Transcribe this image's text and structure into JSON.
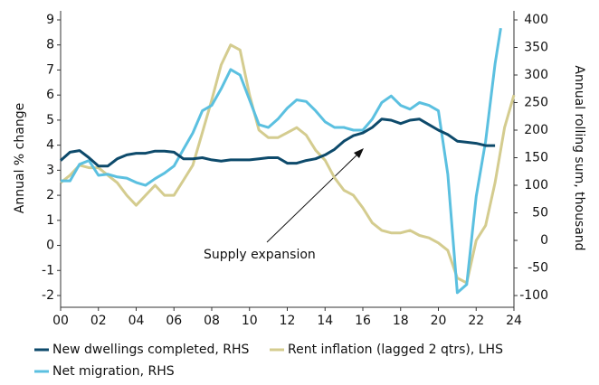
{
  "chart_data": {
    "type": "line",
    "ylabel": "Annual % change",
    "y2label": "Annual rolling sum, thousand",
    "annotation": "Supply expansion",
    "xlim": [
      2000,
      2024
    ],
    "xticks": [
      {
        "value": 2000,
        "label": "00"
      },
      {
        "value": 2002,
        "label": "02"
      },
      {
        "value": 2004,
        "label": "04"
      },
      {
        "value": 2006,
        "label": "06"
      },
      {
        "value": 2008,
        "label": "08"
      },
      {
        "value": 2010,
        "label": "10"
      },
      {
        "value": 2012,
        "label": "12"
      },
      {
        "value": 2014,
        "label": "14"
      },
      {
        "value": 2016,
        "label": "16"
      },
      {
        "value": 2018,
        "label": "18"
      },
      {
        "value": 2020,
        "label": "20"
      },
      {
        "value": 2022,
        "label": "22"
      },
      {
        "value": 2024,
        "label": "24"
      }
    ],
    "ylim": [
      -2,
      9
    ],
    "yticks": [
      -2,
      -1,
      0,
      1,
      2,
      3,
      4,
      5,
      6,
      7,
      8,
      9
    ],
    "y2lim": [
      -100,
      400
    ],
    "y2ticks": [
      -100,
      -50,
      0,
      50,
      100,
      150,
      200,
      250,
      300,
      350,
      400
    ],
    "series": [
      {
        "name": "New dwellings completed, RHS",
        "color": "#0d4a6b",
        "axis": "y2",
        "x": [
          2000,
          2000.5,
          2001,
          2001.5,
          2002,
          2002.5,
          2003,
          2003.5,
          2004,
          2004.5,
          2005,
          2005.5,
          2006,
          2006.5,
          2007,
          2007.5,
          2008,
          2008.5,
          2009,
          2009.5,
          2010,
          2010.5,
          2011,
          2011.5,
          2012,
          2012.5,
          2013,
          2013.5,
          2014,
          2014.5,
          2015,
          2015.5,
          2016,
          2016.5,
          2017,
          2017.5,
          2018,
          2018.5,
          2019,
          2019.5,
          2020,
          2020.5,
          2021,
          2021.5,
          2022,
          2022.5,
          2023
        ],
        "values": [
          145,
          160,
          163,
          150,
          135,
          135,
          148,
          155,
          158,
          158,
          162,
          162,
          160,
          148,
          148,
          150,
          146,
          144,
          146,
          146,
          146,
          148,
          150,
          150,
          140,
          140,
          145,
          148,
          155,
          165,
          180,
          190,
          195,
          205,
          220,
          218,
          212,
          218,
          220,
          210,
          200,
          192,
          180,
          178,
          176,
          172,
          172
        ]
      },
      {
        "name": "Rent inflation (lagged 2 qtrs), LHS",
        "color": "#d4cc8f",
        "axis": "y",
        "x": [
          2000,
          2000.5,
          2001,
          2001.5,
          2002,
          2002.5,
          2003,
          2003.5,
          2004,
          2004.5,
          2005,
          2005.5,
          2006,
          2006.5,
          2007,
          2007.5,
          2008,
          2008.5,
          2009,
          2009.5,
          2010,
          2010.5,
          2011,
          2011.5,
          2012,
          2012.5,
          2013,
          2013.5,
          2014,
          2014.5,
          2015,
          2015.5,
          2016,
          2016.5,
          2017,
          2017.5,
          2018,
          2018.5,
          2019,
          2019.5,
          2020,
          2020.5,
          2021,
          2021.5,
          2022,
          2022.5,
          2023,
          2023.5,
          2024
        ],
        "values": [
          2.5,
          2.8,
          3.2,
          3.1,
          3.1,
          2.8,
          2.5,
          2.0,
          1.6,
          2.0,
          2.4,
          2.0,
          2.0,
          2.6,
          3.2,
          4.5,
          5.8,
          7.2,
          8.0,
          7.8,
          6.0,
          4.6,
          4.3,
          4.3,
          4.5,
          4.7,
          4.4,
          3.8,
          3.4,
          2.7,
          2.2,
          2.0,
          1.5,
          0.9,
          0.6,
          0.5,
          0.5,
          0.6,
          0.4,
          0.3,
          0.1,
          -0.2,
          -1.3,
          -1.5,
          0.2,
          0.8,
          2.5,
          4.7,
          6.0
        ]
      },
      {
        "name": "Net migration, RHS",
        "color": "#5bc0e0",
        "axis": "y2",
        "x": [
          2000,
          2000.5,
          2001,
          2001.5,
          2002,
          2002.5,
          2003,
          2003.5,
          2004,
          2004.5,
          2005,
          2005.5,
          2006,
          2006.5,
          2007,
          2007.5,
          2008,
          2008.5,
          2009,
          2009.5,
          2010,
          2010.5,
          2011,
          2011.5,
          2012,
          2012.5,
          2013,
          2013.5,
          2014,
          2014.5,
          2015,
          2015.5,
          2016,
          2016.5,
          2017,
          2017.5,
          2018,
          2018.5,
          2019,
          2019.5,
          2020,
          2020.5,
          2021,
          2021.5,
          2022,
          2022.5,
          2023,
          2023.3
        ],
        "values": [
          108,
          108,
          138,
          145,
          118,
          120,
          115,
          113,
          105,
          100,
          112,
          122,
          135,
          165,
          195,
          235,
          245,
          275,
          310,
          300,
          255,
          210,
          205,
          220,
          240,
          255,
          252,
          235,
          215,
          205,
          205,
          200,
          200,
          220,
          250,
          262,
          245,
          238,
          250,
          245,
          235,
          120,
          -95,
          -80,
          80,
          180,
          320,
          385
        ]
      }
    ]
  }
}
